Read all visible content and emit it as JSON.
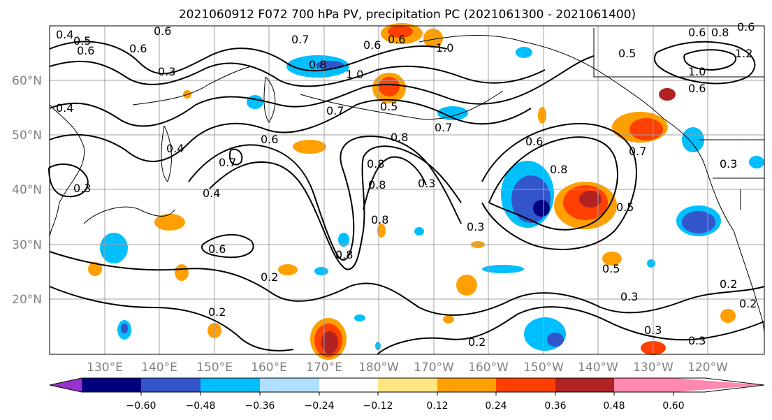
{
  "title": "2021060912 F072 700 hPa PV, precipitation PC (2021061300 - 2021061400)",
  "map": {
    "lat_ticks": [
      "60°N",
      "50°N",
      "40°N",
      "30°N",
      "20°N"
    ],
    "lon_ticks": [
      "130°E",
      "140°E",
      "150°E",
      "160°E",
      "170°E",
      "180°W",
      "170°W",
      "160°W",
      "150°W",
      "140°W",
      "130°W",
      "120°W"
    ]
  },
  "contour_labels": [
    "0.4",
    "0.5",
    "0.6",
    "0.6",
    "0.7",
    "0.6",
    "1.0",
    "0.8",
    "1.0",
    "0.3",
    "0.4",
    "0.7",
    "0.5",
    "0.8",
    "0.7",
    "0.6",
    "0.8",
    "0.8",
    "0.6",
    "0.3",
    "0.3",
    "0.4",
    "0.8",
    "0.6",
    "0.8",
    "0.7",
    "0.5",
    "0.3",
    "0.2",
    "0.2",
    "0.5",
    "0.3",
    "0.2",
    "0.2",
    "0.3",
    "0.3",
    "0.2",
    "1.0",
    "0.6",
    "0.8",
    "0.5",
    "0.6",
    "0.4",
    "0.3",
    "0.6",
    "0.7",
    "0.6",
    "0.8",
    "0.6",
    "1.2"
  ],
  "colorbar": {
    "tick_labels": [
      "−0.60",
      "−0.48",
      "−0.36",
      "−0.24",
      "−0.12",
      "0.12",
      "0.24",
      "0.36",
      "0.48",
      "0.60"
    ],
    "colors": [
      "#9932cc",
      "#000080",
      "#3355cc",
      "#00bfff",
      "#b0e0ff",
      "#ffffff",
      "#ffe680",
      "#ffa000",
      "#ff4000",
      "#b22222",
      "#ff88b0"
    ]
  }
}
